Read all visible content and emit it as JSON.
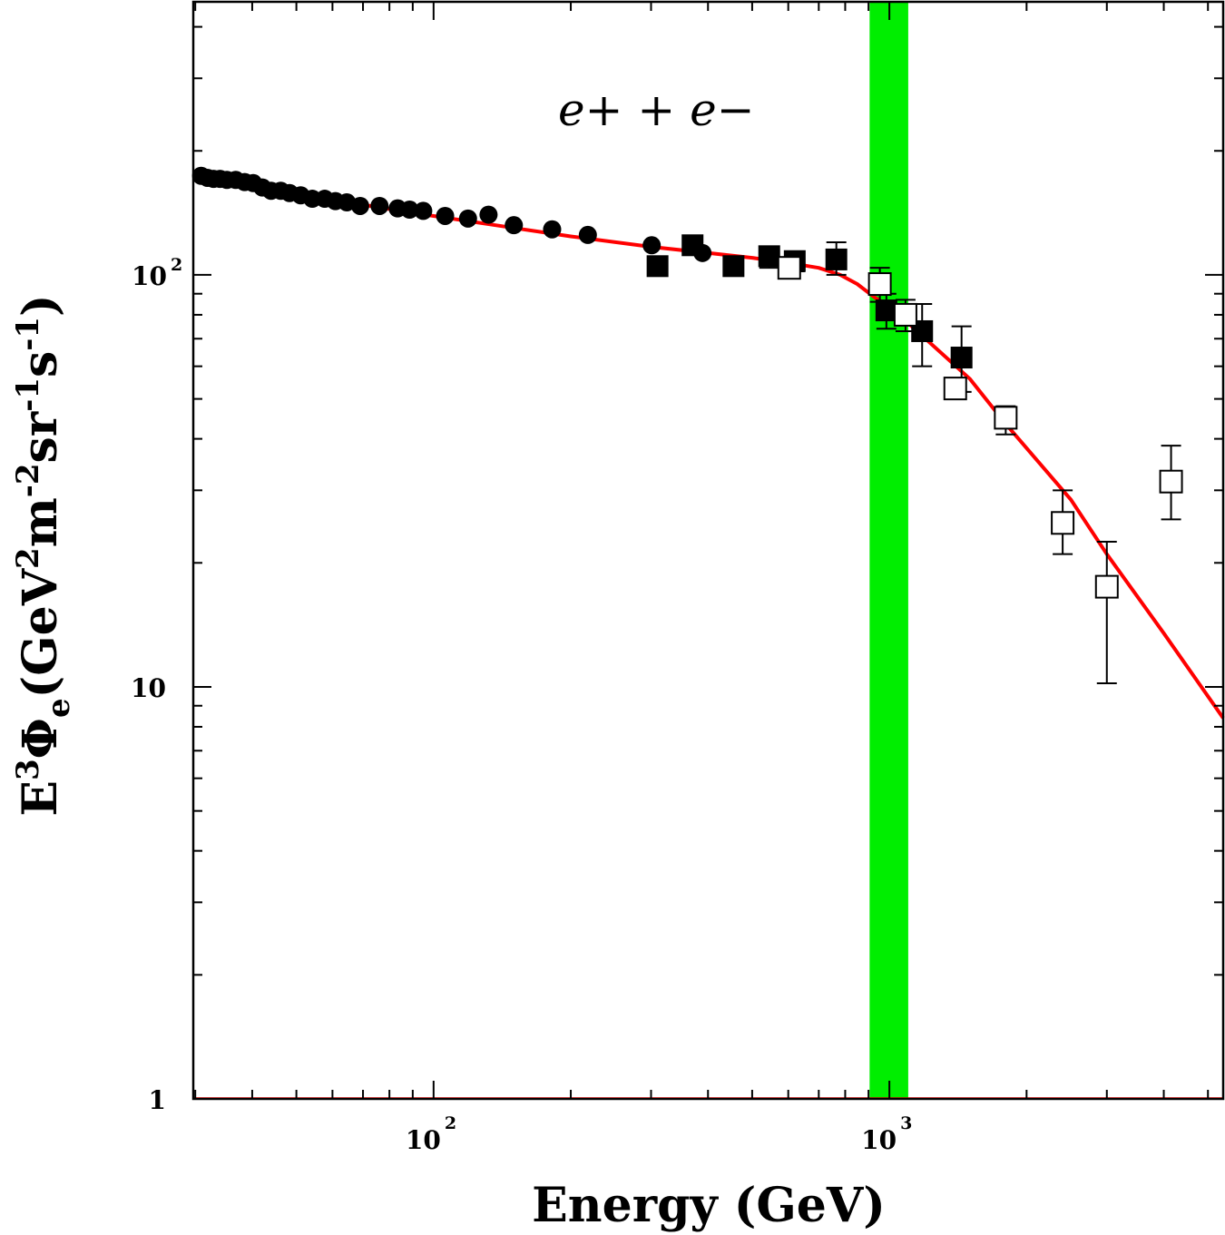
{
  "chart_data": {
    "type": "scatter",
    "title": "",
    "annotation": "e+ + e−",
    "xlabel": "Energy (GeV)",
    "ylabel": {
      "base": "E",
      "parts": [
        {
          "text": "E",
          "shift": "base"
        },
        {
          "text": "3",
          "shift": "super"
        },
        {
          "text": "Φ",
          "shift": "base"
        },
        {
          "text": "e",
          "shift": "sub"
        },
        {
          "text": "(GeV",
          "shift": "base"
        },
        {
          "text": "2",
          "shift": "super"
        },
        {
          "text": "m",
          "shift": "base"
        },
        {
          "text": "-2",
          "shift": "super"
        },
        {
          "text": "sr",
          "shift": "base"
        },
        {
          "text": "-1",
          "shift": "super"
        },
        {
          "text": "s",
          "shift": "base"
        },
        {
          "text": "-1",
          "shift": "super"
        },
        {
          "text": ")",
          "shift": "base"
        }
      ]
    },
    "xscale": "log",
    "yscale": "log",
    "xlim": [
      29.7,
      5400
    ],
    "ylim": [
      1,
      460
    ],
    "x_ticks": [
      {
        "value": 100,
        "base": "10",
        "exp": "2"
      },
      {
        "value": 1000,
        "base": "10",
        "exp": "3"
      }
    ],
    "y_ticks": [
      {
        "value": 1,
        "base": "1",
        "exp": ""
      },
      {
        "value": 10,
        "base": "10",
        "exp": ""
      },
      {
        "value": 100,
        "base": "10",
        "exp": "2"
      }
    ],
    "band": {
      "x_range": [
        905,
        1100
      ],
      "color": "#00ee00"
    },
    "colors": {
      "fit_line": "#ff0000",
      "markers": "#000000",
      "band": "#00ee00"
    },
    "series": [
      {
        "name": "filled circles",
        "marker": "circle-filled",
        "points": [
          {
            "x": 30.9,
            "y": 174
          },
          {
            "x": 31.9,
            "y": 172
          },
          {
            "x": 32.9,
            "y": 171
          },
          {
            "x": 34.0,
            "y": 171
          },
          {
            "x": 35.2,
            "y": 170
          },
          {
            "x": 36.8,
            "y": 170
          },
          {
            "x": 38.5,
            "y": 168
          },
          {
            "x": 40.2,
            "y": 167
          },
          {
            "x": 42.1,
            "y": 163
          },
          {
            "x": 44.0,
            "y": 160
          },
          {
            "x": 46.2,
            "y": 160
          },
          {
            "x": 48.3,
            "y": 158
          },
          {
            "x": 51.1,
            "y": 156
          },
          {
            "x": 54.2,
            "y": 153
          },
          {
            "x": 57.7,
            "y": 153
          },
          {
            "x": 60.9,
            "y": 151
          },
          {
            "x": 64.5,
            "y": 150
          },
          {
            "x": 69.0,
            "y": 147
          },
          {
            "x": 76.1,
            "y": 147
          },
          {
            "x": 83.4,
            "y": 145
          },
          {
            "x": 88.6,
            "y": 144
          },
          {
            "x": 94.9,
            "y": 143
          },
          {
            "x": 106,
            "y": 139
          },
          {
            "x": 119,
            "y": 137
          },
          {
            "x": 132,
            "y": 140
          },
          {
            "x": 150,
            "y": 132
          },
          {
            "x": 182,
            "y": 129
          },
          {
            "x": 218,
            "y": 125
          },
          {
            "x": 301,
            "y": 118
          },
          {
            "x": 389,
            "y": 113
          }
        ]
      },
      {
        "name": "filled squares",
        "marker": "square-filled",
        "points": [
          {
            "x": 310,
            "y": 105,
            "err": [
              103,
              107
            ]
          },
          {
            "x": 370,
            "y": 118,
            "err": [
              116,
              120
            ]
          },
          {
            "x": 455,
            "y": 105,
            "err": [
              103,
              107
            ]
          },
          {
            "x": 545,
            "y": 111,
            "err": [
              104,
              117
            ]
          },
          {
            "x": 620,
            "y": 108,
            "err": [
              102,
              114
            ]
          },
          {
            "x": 765,
            "y": 109,
            "err": [
              100,
              120
            ]
          },
          {
            "x": 985,
            "y": 82,
            "err": [
              74,
              90
            ]
          },
          {
            "x": 1180,
            "y": 73,
            "err": [
              60,
              85
            ]
          },
          {
            "x": 1440,
            "y": 63,
            "err": [
              52,
              75
            ]
          }
        ]
      },
      {
        "name": "open squares",
        "marker": "square-open",
        "points": [
          {
            "x": 603,
            "y": 104,
            "err": [
              100,
              108
            ]
          },
          {
            "x": 953,
            "y": 95,
            "err": [
              86,
              104
            ]
          },
          {
            "x": 1085,
            "y": 80,
            "err": [
              73,
              87
            ]
          },
          {
            "x": 1395,
            "y": 53,
            "err": [
              50,
              56
            ]
          },
          {
            "x": 1800,
            "y": 45,
            "err": [
              41,
              48
            ]
          },
          {
            "x": 2400,
            "y": 25,
            "err": [
              21,
              30
            ]
          },
          {
            "x": 3000,
            "y": 17.5,
            "err": [
              10.2,
              22.5
            ]
          },
          {
            "x": 4150,
            "y": 31.5,
            "err": [
              25.5,
              38.5
            ]
          }
        ]
      },
      {
        "name": "fit",
        "marker": "line",
        "points": [
          {
            "x": 29.7,
            "y": 174
          },
          {
            "x": 40,
            "y": 164
          },
          {
            "x": 60,
            "y": 152
          },
          {
            "x": 100,
            "y": 139
          },
          {
            "x": 150,
            "y": 130
          },
          {
            "x": 200,
            "y": 124
          },
          {
            "x": 300,
            "y": 117
          },
          {
            "x": 400,
            "y": 113
          },
          {
            "x": 500,
            "y": 110
          },
          {
            "x": 600,
            "y": 107
          },
          {
            "x": 700,
            "y": 104
          },
          {
            "x": 780,
            "y": 100
          },
          {
            "x": 850,
            "y": 95
          },
          {
            "x": 930,
            "y": 88
          },
          {
            "x": 1000,
            "y": 84
          },
          {
            "x": 1200,
            "y": 70
          },
          {
            "x": 1500,
            "y": 56
          },
          {
            "x": 1800,
            "y": 43.5
          },
          {
            "x": 2500,
            "y": 28.5
          },
          {
            "x": 3000,
            "y": 21
          },
          {
            "x": 4000,
            "y": 13.5
          },
          {
            "x": 5400,
            "y": 8.4
          }
        ]
      }
    ]
  }
}
